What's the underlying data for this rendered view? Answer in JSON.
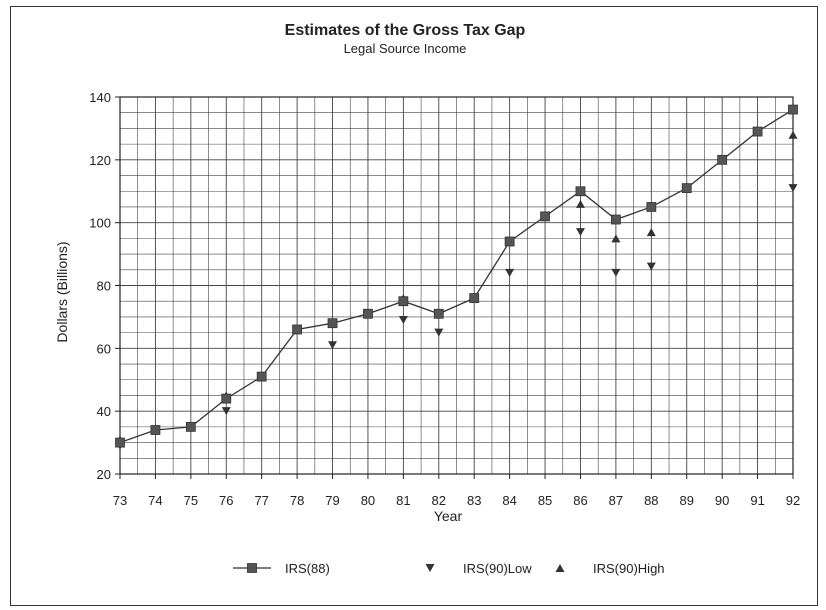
{
  "chart_data": {
    "type": "line",
    "title": "Estimates of the Gross Tax Gap",
    "subtitle": "Legal Source Income",
    "xlabel": "Year",
    "ylabel": "Dollars (Billions)",
    "categories": [
      "73",
      "74",
      "75",
      "76",
      "77",
      "78",
      "79",
      "80",
      "81",
      "82",
      "83",
      "84",
      "85",
      "86",
      "87",
      "88",
      "89",
      "90",
      "91",
      "92"
    ],
    "ylim": [
      20,
      140
    ],
    "yticks": [
      "20",
      "40",
      "60",
      "80",
      "100",
      "120",
      "140"
    ],
    "grid": true,
    "legend_position": "bottom",
    "series": [
      {
        "name": "IRS(88)",
        "marker": "square",
        "line": true,
        "values": [
          30,
          34,
          35,
          44,
          51,
          66,
          68,
          71,
          75,
          71,
          76,
          94,
          102,
          110,
          101,
          105,
          111,
          120,
          129,
          136
        ]
      },
      {
        "name": "IRS(90)Low",
        "marker": "triangle-down",
        "line": false,
        "values": [
          29,
          null,
          null,
          40,
          null,
          null,
          61,
          null,
          69,
          65,
          null,
          84,
          null,
          97,
          84,
          86,
          null,
          null,
          null,
          111
        ]
      },
      {
        "name": "IRS(90)High",
        "marker": "triangle-up",
        "line": false,
        "values": [
          31,
          null,
          null,
          45,
          null,
          null,
          null,
          null,
          76,
          null,
          null,
          null,
          null,
          106,
          95,
          97,
          null,
          null,
          null,
          128
        ]
      }
    ]
  }
}
